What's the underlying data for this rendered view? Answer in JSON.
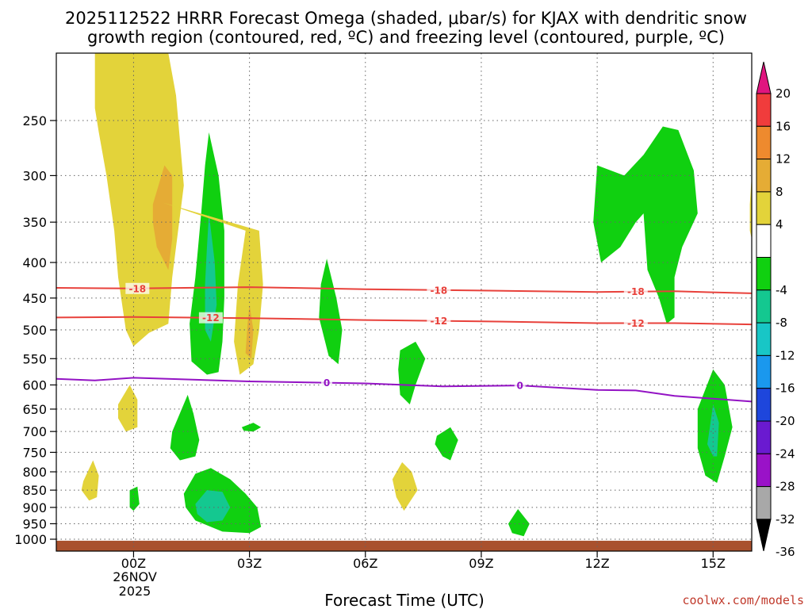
{
  "chart_data": {
    "type": "heatmap",
    "title_line1": "2025112522 HRRR Forecast Omega (shaded, μbar/s) for KJAX with dendritic snow",
    "title_line2": "growth region (contoured, red, ºC) and freezing level (contoured, purple, ºC)",
    "xlabel": "Forecast Time (UTC)",
    "ylabel": "",
    "x_ticks": [
      {
        "hour": 0,
        "label": "00Z"
      },
      {
        "hour": 3,
        "label": "03Z"
      },
      {
        "hour": 6,
        "label": "06Z"
      },
      {
        "hour": 9,
        "label": "09Z"
      },
      {
        "hour": 12,
        "label": "12Z"
      },
      {
        "hour": 15,
        "label": "15Z"
      }
    ],
    "x_sublabel_date": "26NOV",
    "x_sublabel_year": "2025",
    "xlim": [
      -2,
      16
    ],
    "y_ticks": [
      250,
      300,
      350,
      400,
      450,
      500,
      550,
      600,
      650,
      700,
      750,
      800,
      850,
      900,
      950,
      1000
    ],
    "ylim": [
      1000,
      200
    ],
    "colorbar": {
      "labels": [
        "20",
        "16",
        "12",
        "8",
        "4",
        "-4",
        "-8",
        "-12",
        "-16",
        "-20",
        "-24",
        "-28",
        "-32",
        "-36"
      ],
      "bins": [
        {
          "lo": 16,
          "hi": 20,
          "color": "#f03c3c"
        },
        {
          "lo": 12,
          "hi": 16,
          "color": "#ee8a2e"
        },
        {
          "lo": 8,
          "hi": 12,
          "color": "#e5ac35"
        },
        {
          "lo": 4,
          "hi": 8,
          "color": "#e3d33a"
        },
        {
          "lo": -4,
          "hi": 4,
          "color": "#ffffff"
        },
        {
          "lo": -8,
          "hi": -4,
          "color": "#10d010"
        },
        {
          "lo": -12,
          "hi": -8,
          "color": "#14c890"
        },
        {
          "lo": -16,
          "hi": -12,
          "color": "#18c6c6"
        },
        {
          "lo": -20,
          "hi": -16,
          "color": "#1a98ee"
        },
        {
          "lo": -24,
          "hi": -20,
          "color": "#1e46dc"
        },
        {
          "lo": -28,
          "hi": -24,
          "color": "#6a1ad0"
        },
        {
          "lo": -32,
          "hi": -28,
          "color": "#9a12c8"
        },
        {
          "lo": -36,
          "hi": -32,
          "color": "#a8a8a8"
        }
      ],
      "top_arrow_color": "#e0157f",
      "bottom_arrow_color": "#000000"
    },
    "contours": [
      {
        "name": "dgz-minus18",
        "value": -18,
        "label": "-18",
        "color": "#e8413b",
        "points": [
          [
            -2,
            435
          ],
          [
            0,
            436
          ],
          [
            3,
            434
          ],
          [
            6,
            437
          ],
          [
            9,
            439
          ],
          [
            12,
            441
          ],
          [
            14,
            440
          ],
          [
            16,
            443
          ]
        ],
        "label_hours": [
          0.1,
          7.9,
          13.0
        ]
      },
      {
        "name": "dgz-minus12",
        "value": -12,
        "label": "-12",
        "color": "#e8413b",
        "points": [
          [
            -2,
            480
          ],
          [
            0,
            479
          ],
          [
            3,
            481
          ],
          [
            6,
            484
          ],
          [
            9,
            486
          ],
          [
            12,
            489
          ],
          [
            14,
            489
          ],
          [
            16,
            491
          ]
        ],
        "label_hours": [
          2.0,
          7.9,
          13.0
        ]
      },
      {
        "name": "freezing-level",
        "value": 0,
        "label": "0",
        "color": "#9313c4",
        "points": [
          [
            -2,
            588
          ],
          [
            -1,
            591
          ],
          [
            0,
            586
          ],
          [
            3,
            593
          ],
          [
            6,
            597
          ],
          [
            8,
            603
          ],
          [
            10,
            601
          ],
          [
            12,
            610
          ],
          [
            13,
            611
          ],
          [
            14,
            622
          ],
          [
            15,
            628
          ],
          [
            16,
            634
          ]
        ],
        "label_hours": [
          5.0,
          10.0
        ]
      }
    ],
    "omega_regions": [
      {
        "name": "yellow-upper-left",
        "value": 4,
        "pts": [
          [
            -1,
            200
          ],
          [
            0.9,
            200
          ],
          [
            1.1,
            230
          ],
          [
            1.3,
            310
          ],
          [
            1.1,
            380
          ],
          [
            1.0,
            420
          ],
          [
            0.9,
            490
          ],
          [
            0.4,
            505
          ],
          [
            0,
            528
          ],
          [
            -0.2,
            500
          ],
          [
            -0.4,
            420
          ],
          [
            -0.5,
            360
          ],
          [
            -0.7,
            300
          ],
          [
            -0.9,
            260
          ],
          [
            -1,
            240
          ]
        ]
      },
      {
        "name": "orange-upper-left",
        "value": 8,
        "pts": [
          [
            0.5,
            330
          ],
          [
            0.8,
            290
          ],
          [
            1.0,
            300
          ],
          [
            1.0,
            370
          ],
          [
            0.9,
            410
          ],
          [
            0.6,
            380
          ],
          [
            0.5,
            350
          ]
        ]
      },
      {
        "name": "green-02z-column",
        "value": -4,
        "pts": [
          [
            1.95,
            260
          ],
          [
            2.2,
            300
          ],
          [
            2.35,
            360
          ],
          [
            2.35,
            450
          ],
          [
            2.3,
            520
          ],
          [
            2.2,
            575
          ],
          [
            1.9,
            580
          ],
          [
            1.5,
            555
          ],
          [
            1.45,
            490
          ],
          [
            1.6,
            420
          ],
          [
            1.75,
            340
          ],
          [
            1.85,
            290
          ]
        ]
      },
      {
        "name": "teal-02z-column",
        "value": -8,
        "pts": [
          [
            1.95,
            340
          ],
          [
            2.1,
            400
          ],
          [
            2.15,
            460
          ],
          [
            2.0,
            520
          ],
          [
            1.85,
            500
          ],
          [
            1.85,
            430
          ],
          [
            1.9,
            380
          ]
        ]
      },
      {
        "name": "yellow-03z-column",
        "value": 4,
        "pts": [
          [
            0.75,
            328
          ],
          [
            3.25,
            360
          ],
          [
            3.35,
            430
          ],
          [
            3.25,
            500
          ],
          [
            3.1,
            560
          ],
          [
            2.75,
            580
          ],
          [
            2.6,
            520
          ],
          [
            2.7,
            430
          ],
          [
            2.9,
            360
          ]
        ]
      },
      {
        "name": "orange-03z-column",
        "value": 8,
        "pts": [
          [
            3.0,
            460
          ],
          [
            3.1,
            500
          ],
          [
            3.05,
            550
          ],
          [
            2.9,
            540
          ],
          [
            2.95,
            490
          ]
        ]
      },
      {
        "name": "yellow-mid-left",
        "value": 4,
        "pts": [
          [
            -0.4,
            640
          ],
          [
            -0.1,
            600
          ],
          [
            0.1,
            630
          ],
          [
            0.1,
            690
          ],
          [
            -0.2,
            700
          ],
          [
            -0.4,
            670
          ]
        ]
      },
      {
        "name": "green-mid-left",
        "value": -4,
        "pts": [
          [
            1.0,
            700
          ],
          [
            1.4,
            620
          ],
          [
            1.55,
            660
          ],
          [
            1.7,
            720
          ],
          [
            1.6,
            760
          ],
          [
            1.2,
            770
          ],
          [
            0.95,
            740
          ]
        ]
      },
      {
        "name": "green-0330-blob",
        "value": -4,
        "pts": [
          [
            2.8,
            690
          ],
          [
            3.1,
            680
          ],
          [
            3.3,
            690
          ],
          [
            3.1,
            700
          ],
          [
            2.85,
            698
          ]
        ]
      },
      {
        "name": "green-05z-column",
        "value": -4,
        "pts": [
          [
            5.0,
            395
          ],
          [
            5.25,
            450
          ],
          [
            5.4,
            500
          ],
          [
            5.3,
            560
          ],
          [
            5.05,
            545
          ],
          [
            4.8,
            480
          ],
          [
            4.85,
            430
          ]
        ]
      },
      {
        "name": "green-07z-column",
        "value": -4,
        "pts": [
          [
            6.9,
            535
          ],
          [
            7.3,
            520
          ],
          [
            7.55,
            550
          ],
          [
            7.3,
            600
          ],
          [
            7.15,
            640
          ],
          [
            6.9,
            620
          ],
          [
            6.85,
            570
          ]
        ]
      },
      {
        "name": "green-08z-blob",
        "value": -4,
        "pts": [
          [
            7.85,
            710
          ],
          [
            8.2,
            690
          ],
          [
            8.4,
            720
          ],
          [
            8.2,
            770
          ],
          [
            8.0,
            760
          ],
          [
            7.8,
            730
          ]
        ]
      },
      {
        "name": "yellow-07z-blob",
        "value": 4,
        "pts": [
          [
            6.7,
            820
          ],
          [
            6.95,
            775
          ],
          [
            7.2,
            800
          ],
          [
            7.35,
            850
          ],
          [
            7.0,
            910
          ],
          [
            6.8,
            870
          ]
        ]
      },
      {
        "name": "yellow-lower-left",
        "value": 4,
        "pts": [
          [
            -1.3,
            825
          ],
          [
            -1.05,
            770
          ],
          [
            -0.9,
            810
          ],
          [
            -0.95,
            870
          ],
          [
            -1.15,
            880
          ],
          [
            -1.35,
            850
          ]
        ]
      },
      {
        "name": "green-lower-left",
        "value": -4,
        "pts": [
          [
            -0.1,
            850
          ],
          [
            0.1,
            840
          ],
          [
            0.15,
            890
          ],
          [
            0,
            910
          ],
          [
            -0.1,
            900
          ]
        ]
      },
      {
        "name": "green-lower-02z",
        "value": -4,
        "pts": [
          [
            1.3,
            860
          ],
          [
            1.6,
            805
          ],
          [
            2.0,
            790
          ],
          [
            2.5,
            820
          ],
          [
            2.9,
            860
          ],
          [
            3.2,
            900
          ],
          [
            3.3,
            960
          ],
          [
            3.0,
            980
          ],
          [
            2.3,
            975
          ],
          [
            1.6,
            940
          ],
          [
            1.35,
            900
          ]
        ]
      },
      {
        "name": "teal-lower-02z",
        "value": -8,
        "pts": [
          [
            1.6,
            890
          ],
          [
            1.9,
            850
          ],
          [
            2.3,
            855
          ],
          [
            2.5,
            900
          ],
          [
            2.3,
            940
          ],
          [
            1.9,
            945
          ],
          [
            1.65,
            920
          ]
        ]
      },
      {
        "name": "green-10z-blob",
        "value": -4,
        "pts": [
          [
            9.7,
            950
          ],
          [
            9.95,
            905
          ],
          [
            10.25,
            950
          ],
          [
            10.1,
            990
          ],
          [
            9.8,
            980
          ]
        ]
      },
      {
        "name": "green-upper-right",
        "value": -4,
        "pts": [
          [
            12.0,
            290
          ],
          [
            12.7,
            300
          ],
          [
            13.2,
            280
          ],
          [
            13.7,
            255
          ],
          [
            14.1,
            258
          ],
          [
            14.5,
            295
          ],
          [
            14.6,
            340
          ],
          [
            14.2,
            380
          ],
          [
            14.0,
            420
          ],
          [
            14.0,
            480
          ],
          [
            13.8,
            490
          ],
          [
            13.6,
            450
          ],
          [
            13.3,
            410
          ],
          [
            13.2,
            340
          ],
          [
            13.0,
            350
          ],
          [
            12.6,
            380
          ],
          [
            12.1,
            400
          ],
          [
            11.9,
            350
          ]
        ]
      },
      {
        "name": "green-lower-right",
        "value": -4,
        "pts": [
          [
            14.6,
            650
          ],
          [
            15.0,
            570
          ],
          [
            15.3,
            600
          ],
          [
            15.5,
            690
          ],
          [
            15.3,
            760
          ],
          [
            15.1,
            830
          ],
          [
            14.8,
            810
          ],
          [
            14.6,
            740
          ]
        ]
      },
      {
        "name": "teal-lower-right",
        "value": -8,
        "pts": [
          [
            14.9,
            700
          ],
          [
            15.0,
            640
          ],
          [
            15.15,
            680
          ],
          [
            15.1,
            760
          ],
          [
            15.0,
            760
          ],
          [
            14.85,
            730
          ]
        ]
      },
      {
        "name": "yellow-right-edge",
        "value": 4,
        "pts": [
          [
            15.95,
            330
          ],
          [
            16.0,
            300
          ],
          [
            16.0,
            370
          ],
          [
            15.95,
            360
          ]
        ]
      }
    ],
    "surface": {
      "label": "ground",
      "color": "#a9512e",
      "top_hpa": 1005
    }
  },
  "credit": "coolwx.com/models"
}
